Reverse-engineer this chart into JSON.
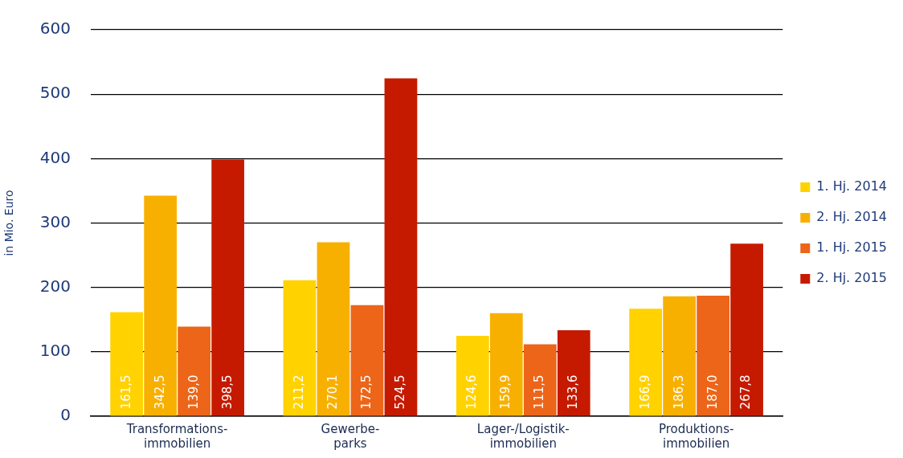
{
  "chart_data": {
    "type": "bar",
    "ylabel": "in Mio. Euro",
    "categories": [
      "Transformations-\nimmobilien",
      "Gewerbe-\nparks",
      "Lager-/Logistik-\nimmobilien",
      "Produktions-\nimmobilien"
    ],
    "series": [
      {
        "name": "1. Hj. 2014",
        "color": "#ffd200",
        "values": [
          161.5,
          211.2,
          124.6,
          166.9
        ],
        "value_labels": [
          "161,5",
          "211,2",
          "124,6",
          "166,9"
        ]
      },
      {
        "name": "2. Hj. 2014",
        "color": "#f8b000",
        "values": [
          342.5,
          270.1,
          159.9,
          186.3
        ],
        "value_labels": [
          "342,5",
          "270,1",
          "159,9",
          "186,3"
        ]
      },
      {
        "name": "1. Hj. 2015",
        "color": "#ec6519",
        "values": [
          139.0,
          172.5,
          111.5,
          187.0
        ],
        "value_labels": [
          "139,0",
          "172,5",
          "111,5",
          "187,0"
        ]
      },
      {
        "name": "2. Hj. 2015",
        "color": "#c51a00",
        "values": [
          398.5,
          524.5,
          133.6,
          267.8
        ],
        "value_labels": [
          "398,5",
          "524,5",
          "133,6",
          "267,8"
        ]
      }
    ],
    "ylim": [
      0,
      600
    ],
    "yticks": [
      0,
      100,
      200,
      300,
      400,
      500,
      600
    ],
    "grid": "y",
    "legend": "right"
  }
}
